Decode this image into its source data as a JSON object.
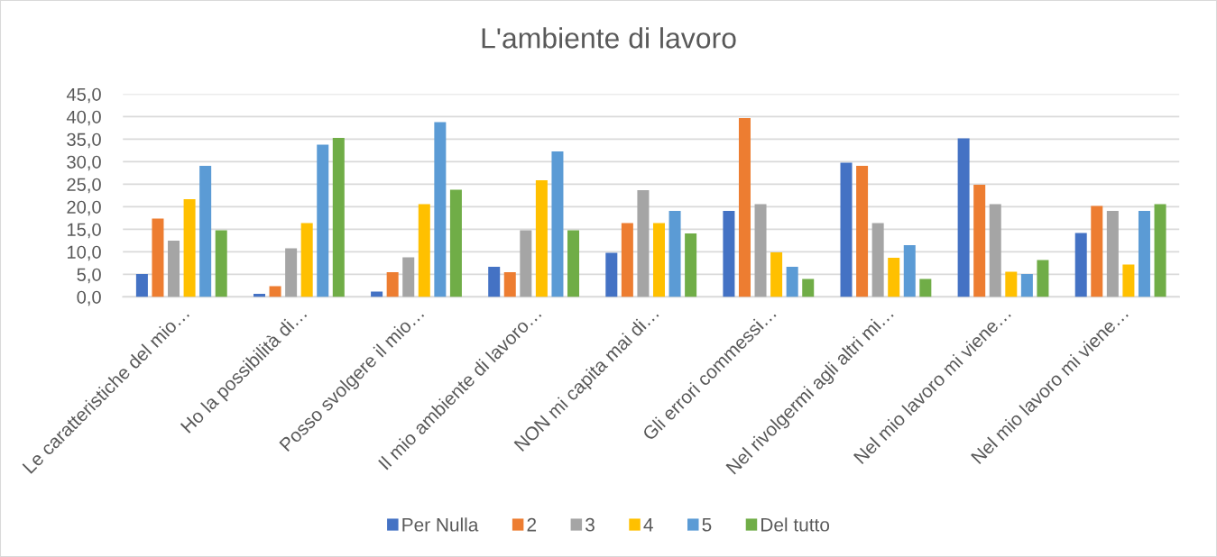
{
  "chart_data": {
    "type": "bar",
    "title": "L'ambiente di lavoro",
    "categories": [
      "Le caratteristiche del mio…",
      "Ho la possibilità di…",
      "Posso svolgere il mio…",
      "Il mio ambiente di lavoro…",
      "NON mi capita mai di…",
      "Gli errori commessi…",
      "Nel rivolgermi agli altri mi…",
      "Nel mio lavoro mi viene…",
      "Nel mio lavoro mi viene…"
    ],
    "series": [
      {
        "name": "Per Nulla",
        "color": "#4472c4",
        "values": [
          5.1,
          0.7,
          1.2,
          6.7,
          9.8,
          19.1,
          29.8,
          35.2,
          14.2
        ]
      },
      {
        "name": "2",
        "color": "#ed7d31",
        "values": [
          17.4,
          2.4,
          5.5,
          5.5,
          16.4,
          39.7,
          29.1,
          24.9,
          20.2
        ]
      },
      {
        "name": "3",
        "color": "#a5a5a5",
        "values": [
          12.5,
          10.8,
          8.8,
          14.8,
          23.7,
          20.6,
          16.4,
          20.6,
          19.1
        ]
      },
      {
        "name": "4",
        "color": "#ffc000",
        "values": [
          21.7,
          16.4,
          20.6,
          25.9,
          16.4,
          9.9,
          8.7,
          5.6,
          7.2
        ]
      },
      {
        "name": "5",
        "color": "#5b9bd5",
        "values": [
          29.1,
          33.8,
          38.8,
          32.3,
          19.1,
          6.7,
          11.5,
          5.1,
          19.1
        ]
      },
      {
        "name": "Del tutto",
        "color": "#70ad47",
        "values": [
          14.8,
          35.3,
          23.8,
          14.8,
          14.1,
          4.0,
          4.0,
          8.2,
          20.6
        ]
      }
    ],
    "ylim": [
      0,
      45
    ],
    "yticks": [
      {
        "value": 0,
        "label": "0,0"
      },
      {
        "value": 5,
        "label": "5,0"
      },
      {
        "value": 10,
        "label": "10,0"
      },
      {
        "value": 15,
        "label": "15,0"
      },
      {
        "value": 20,
        "label": "20,0"
      },
      {
        "value": 25,
        "label": "25,0"
      },
      {
        "value": 30,
        "label": "30,0"
      },
      {
        "value": 35,
        "label": "35,0"
      },
      {
        "value": 40,
        "label": "40,0"
      },
      {
        "value": 45,
        "label": "45,0"
      }
    ],
    "grid": "y",
    "legend": "bottom"
  }
}
